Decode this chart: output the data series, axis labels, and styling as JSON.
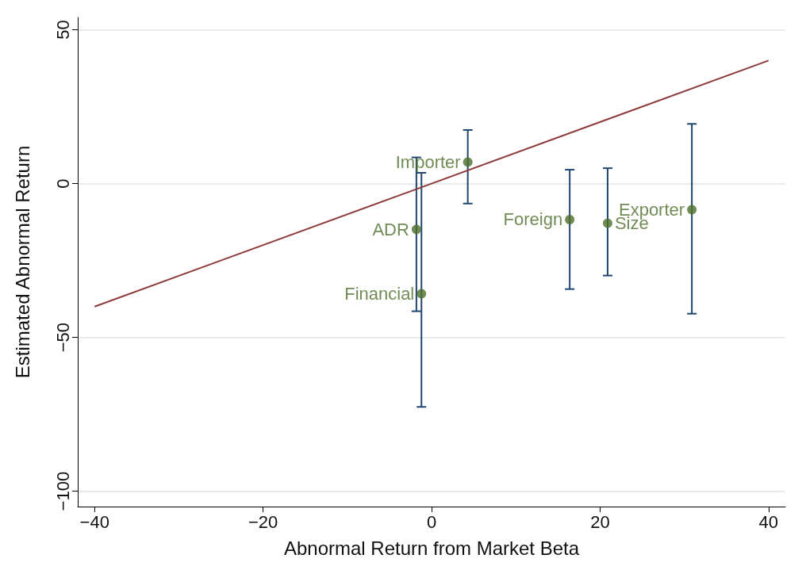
{
  "chart_data": {
    "type": "scatter",
    "xlabel": "Abnormal Return from Market Beta",
    "ylabel": "Estimated Abnormal Return",
    "series": [
      {
        "marker": "circle",
        "color": "#4e6e2a",
        "x": [
          4.3,
          -1.8,
          -1.2,
          16.4,
          20.9,
          30.9
        ],
        "values": [
          7.0,
          -14.9,
          -35.8,
          -11.7,
          -12.9,
          -8.5
        ],
        "errors": [
          [
            -6.5,
            17.4
          ],
          [
            -41.5,
            8.5
          ],
          [
            -72.6,
            3.5
          ],
          [
            -34.3,
            4.5
          ],
          [
            -29.9,
            5.0
          ],
          [
            -42.3,
            19.4
          ]
        ]
      },
      {
        "type": "line",
        "marker": "none",
        "color": "#8e3a3a",
        "x": [
          -40,
          40
        ],
        "values": [
          -40,
          40
        ]
      }
    ],
    "annotations": [
      {
        "text": "Importer",
        "x": 4.3,
        "y": 7.0
      },
      {
        "text": "ADR",
        "x": -1.8,
        "y": -14.9
      },
      {
        "text": "Financial",
        "x": -1.2,
        "y": -35.8
      },
      {
        "text": "Foreign",
        "x": 16.4,
        "y": -11.7
      },
      {
        "text": "Size",
        "x": 20.9,
        "y": -12.9
      },
      {
        "text": "Exporter",
        "x": 30.9,
        "y": -8.5
      }
    ],
    "xlim": [
      -42,
      42
    ],
    "xticks": [
      -40,
      -20,
      0,
      20,
      40
    ],
    "ylim": [
      -105,
      54
    ],
    "yticks": [
      -100,
      -50,
      0,
      50
    ],
    "grid": "y",
    "line_style": "solid"
  }
}
